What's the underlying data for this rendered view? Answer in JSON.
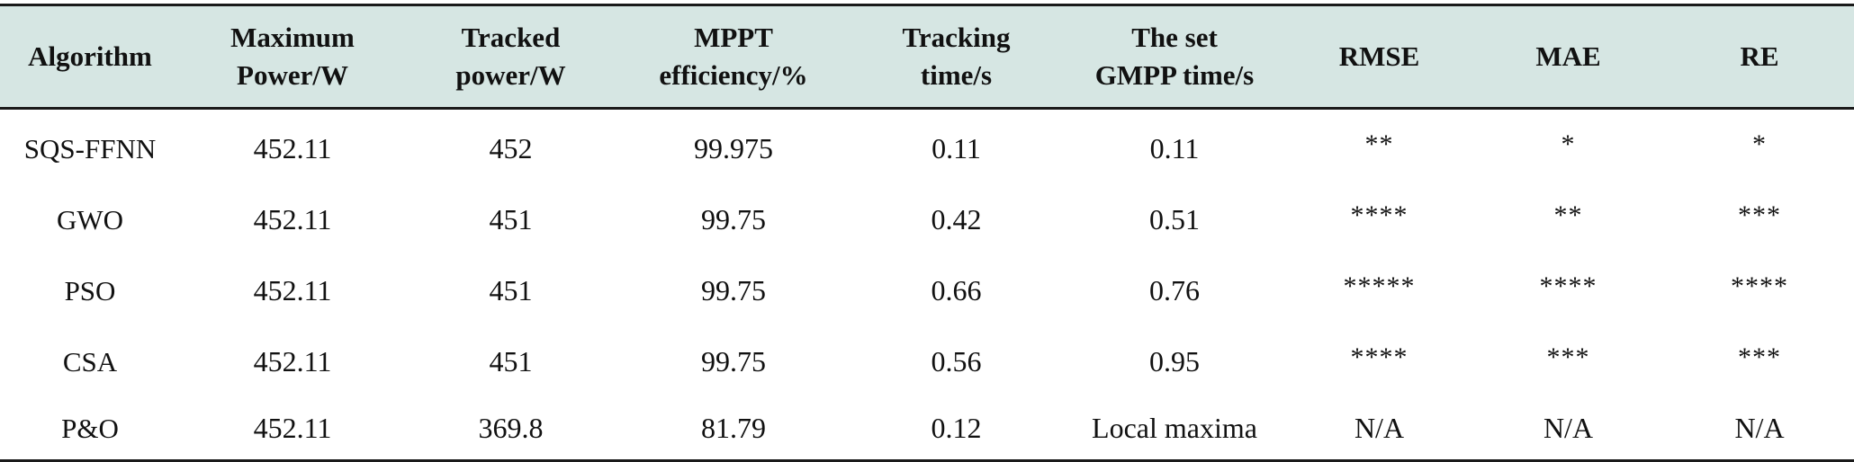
{
  "table": {
    "headers": [
      {
        "line1": "Algorithm",
        "line2": ""
      },
      {
        "line1": "Maximum",
        "line2": "Power/W"
      },
      {
        "line1": "Tracked",
        "line2": "power/W"
      },
      {
        "line1": "MPPT",
        "line2": "efficiency/%"
      },
      {
        "line1": "Tracking",
        "line2": "time/s"
      },
      {
        "line1": "The set",
        "line2": "GMPP time/s"
      },
      {
        "line1": "RMSE",
        "line2": ""
      },
      {
        "line1": "MAE",
        "line2": ""
      },
      {
        "line1": "RE",
        "line2": ""
      }
    ],
    "rows": [
      [
        "SQS-FFNN",
        "452.11",
        "452",
        "99.975",
        "0.11",
        "0.11",
        "**",
        "*",
        "*"
      ],
      [
        "GWO",
        "452.11",
        "451",
        "99.75",
        "0.42",
        "0.51",
        "****",
        "**",
        "***"
      ],
      [
        "PSO",
        "452.11",
        "451",
        "99.75",
        "0.66",
        "0.76",
        "*****",
        "****",
        "****"
      ],
      [
        "CSA",
        "452.11",
        "451",
        "99.75",
        "0.56",
        "0.95",
        "****",
        "***",
        "***"
      ],
      [
        "P&O",
        "452.11",
        "369.8",
        "81.79",
        "0.12",
        "Local maxima",
        "N/A",
        "N/A",
        "N/A"
      ]
    ]
  }
}
